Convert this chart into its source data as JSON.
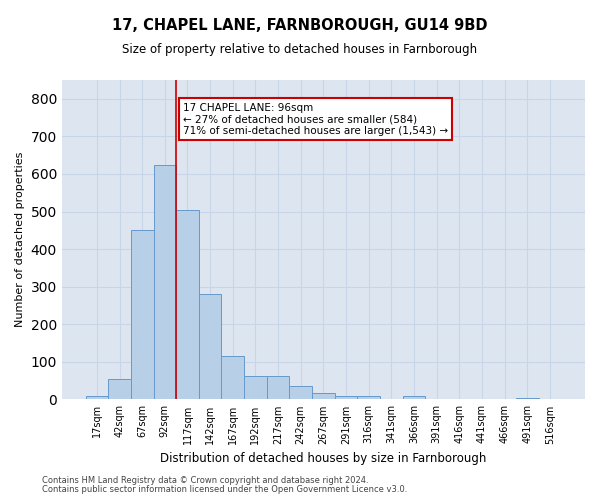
{
  "title1": "17, CHAPEL LANE, FARNBOROUGH, GU14 9BD",
  "title2": "Size of property relative to detached houses in Farnborough",
  "xlabel": "Distribution of detached houses by size in Farnborough",
  "ylabel": "Number of detached properties",
  "footnote1": "Contains HM Land Registry data © Crown copyright and database right 2024.",
  "footnote2": "Contains public sector information licensed under the Open Government Licence v3.0.",
  "annotation_title": "17 CHAPEL LANE: 96sqm",
  "annotation_line1": "← 27% of detached houses are smaller (584)",
  "annotation_line2": "71% of semi-detached houses are larger (1,543) →",
  "bar_values": [
    10,
    55,
    450,
    625,
    505,
    280,
    115,
    62,
    62,
    35,
    18,
    10,
    8,
    0,
    8,
    0,
    0,
    0,
    0,
    5,
    0
  ],
  "bin_labels": [
    "17sqm",
    "42sqm",
    "67sqm",
    "92sqm",
    "117sqm",
    "142sqm",
    "167sqm",
    "192sqm",
    "217sqm",
    "242sqm",
    "267sqm",
    "291sqm",
    "316sqm",
    "341sqm",
    "366sqm",
    "391sqm",
    "416sqm",
    "441sqm",
    "466sqm",
    "491sqm",
    "516sqm"
  ],
  "bar_color": "#b8cfe8",
  "bar_edge_color": "#6699cc",
  "vline_x": 3.5,
  "vline_color": "#cc0000",
  "annotation_box_color": "#ffffff",
  "annotation_box_edge": "#cc0000",
  "ylim": [
    0,
    850
  ],
  "yticks": [
    0,
    100,
    200,
    300,
    400,
    500,
    600,
    700,
    800
  ],
  "grid_color": "#c8d4e8",
  "bg_color": "#dde5f0"
}
